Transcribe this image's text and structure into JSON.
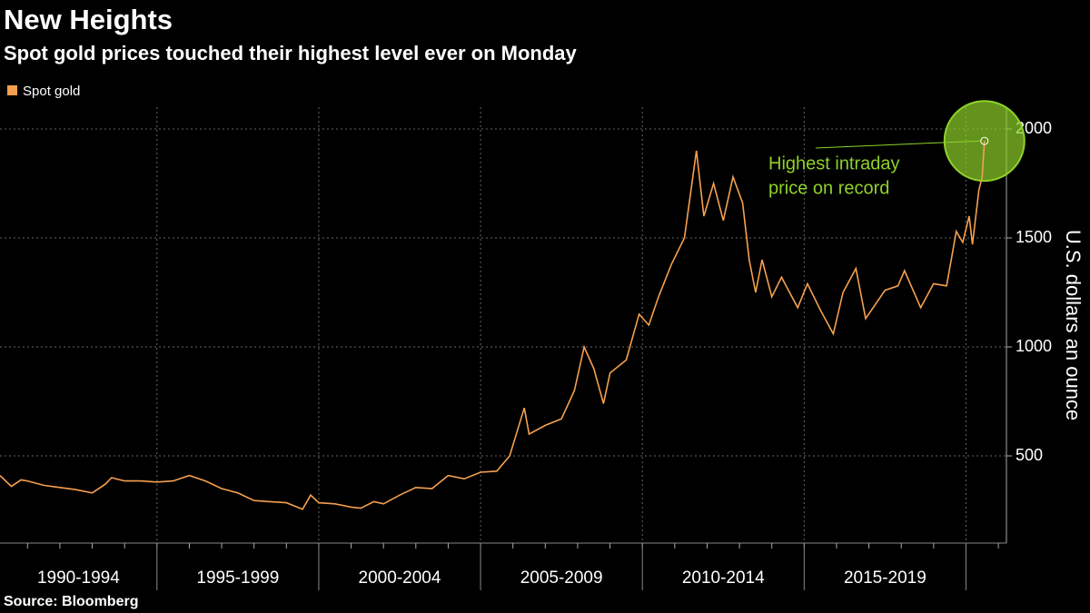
{
  "chart_data": {
    "type": "line",
    "title": "New Heights",
    "subtitle": "Spot gold prices touched their highest level ever on Monday",
    "y_axis_label": "U.S. dollars an ounce",
    "source": "Source: Bloomberg",
    "x": [
      1990.15,
      1990.5,
      1990.8,
      1991.0,
      1991.5,
      1992.0,
      1992.5,
      1993.0,
      1993.4,
      1993.6,
      1994.0,
      1994.5,
      1995.0,
      1995.5,
      1996.0,
      1996.5,
      1997.0,
      1997.5,
      1998.0,
      1998.5,
      1999.0,
      1999.5,
      1999.75,
      2000.0,
      2000.5,
      2001.0,
      2001.3,
      2001.7,
      2002.0,
      2002.5,
      2003.0,
      2003.5,
      2004.0,
      2004.5,
      2005.0,
      2005.5,
      2005.9,
      2006.35,
      2006.5,
      2007.0,
      2007.5,
      2007.9,
      2008.2,
      2008.5,
      2008.8,
      2009.0,
      2009.5,
      2009.9,
      2010.2,
      2010.5,
      2010.9,
      2011.3,
      2011.67,
      2011.9,
      2012.2,
      2012.5,
      2012.8,
      2013.1,
      2013.3,
      2013.5,
      2013.7,
      2014.0,
      2014.3,
      2014.8,
      2015.1,
      2015.5,
      2015.9,
      2016.2,
      2016.6,
      2016.9,
      2017.5,
      2017.9,
      2018.1,
      2018.6,
      2019.0,
      2019.4,
      2019.7,
      2019.9,
      2020.1,
      2020.2,
      2020.4,
      2020.5,
      2020.57
    ],
    "series": [
      {
        "name": "Spot gold",
        "color": "#f5a04f",
        "values": [
          410,
          360,
          390,
          385,
          365,
          355,
          345,
          330,
          370,
          400,
          385,
          385,
          380,
          385,
          410,
          385,
          350,
          330,
          295,
          290,
          285,
          255,
          320,
          285,
          280,
          265,
          260,
          290,
          280,
          320,
          355,
          350,
          410,
          395,
          425,
          430,
          500,
          720,
          600,
          640,
          670,
          800,
          1000,
          900,
          740,
          880,
          940,
          1150,
          1100,
          1230,
          1380,
          1500,
          1900,
          1600,
          1750,
          1580,
          1780,
          1660,
          1400,
          1250,
          1400,
          1230,
          1320,
          1180,
          1290,
          1170,
          1060,
          1250,
          1360,
          1130,
          1260,
          1280,
          1350,
          1180,
          1290,
          1280,
          1530,
          1480,
          1600,
          1470,
          1720,
          1780,
          1945
        ]
      }
    ],
    "xlim": [
      1990.15,
      2021.25
    ],
    "xticks": [
      1991,
      1992,
      1993,
      1994,
      1995,
      1996,
      1997,
      1998,
      1999,
      2000,
      2001,
      2002,
      2003,
      2004,
      2005,
      2006,
      2007,
      2008,
      2009,
      2010,
      2011,
      2012,
      2013,
      2014,
      2015,
      2016,
      2017,
      2018,
      2019,
      2020,
      2021
    ],
    "periods": [
      {
        "label": "1990-1994",
        "start": 1990,
        "end": 1995
      },
      {
        "label": "1995-1999",
        "start": 1995,
        "end": 2000
      },
      {
        "label": "2000-2004",
        "start": 2000,
        "end": 2005
      },
      {
        "label": "2005-2009",
        "start": 2005,
        "end": 2010
      },
      {
        "label": "2010-2014",
        "start": 2010,
        "end": 2015
      },
      {
        "label": "2015-2019",
        "start": 2015,
        "end": 2020
      }
    ],
    "ylim": [
      100,
      2100
    ],
    "yticks": [
      500,
      1000,
      1500,
      2000
    ],
    "grid": true,
    "annotation": {
      "lines": [
        "Highest intraday",
        "price on record"
      ],
      "color": "#8fd12a"
    }
  }
}
